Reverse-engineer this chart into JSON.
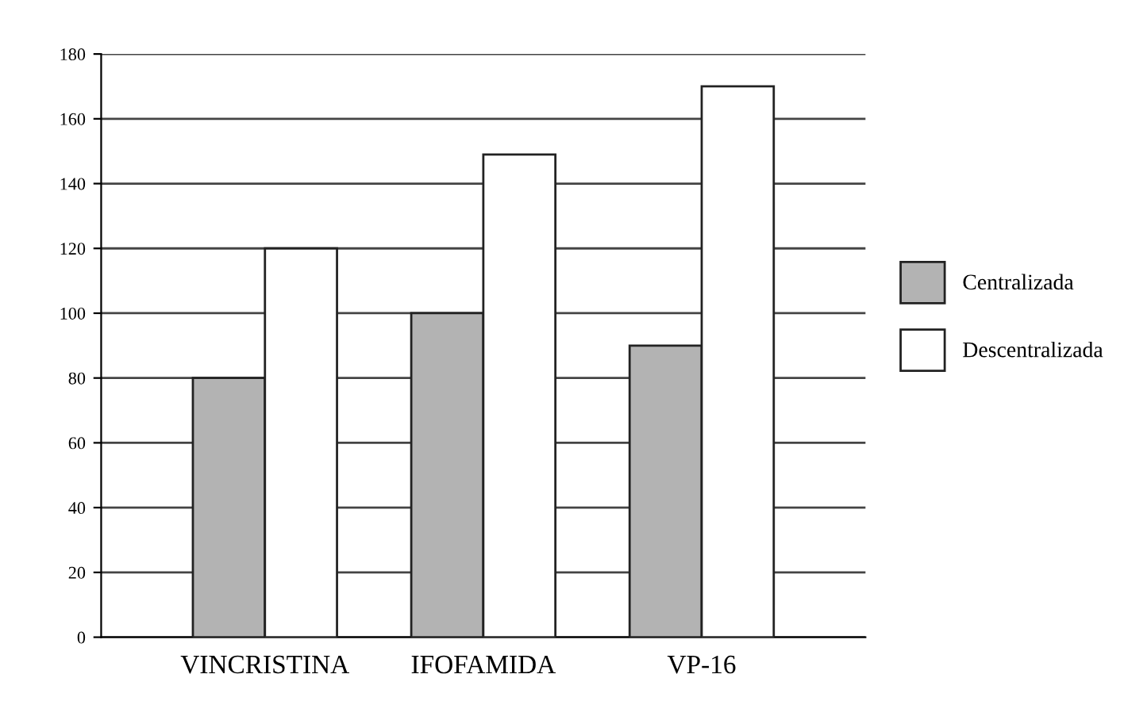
{
  "chart_data": {
    "type": "bar",
    "categories": [
      "VINCRISTINA",
      "IFOFAMIDA",
      "VP-16"
    ],
    "series": [
      {
        "name": "Centralizada",
        "color": "#b3b3b3",
        "values": [
          80,
          100,
          90
        ]
      },
      {
        "name": "Descentralizada",
        "color": "#ffffff",
        "values": [
          120,
          149,
          170
        ]
      }
    ],
    "ylim": [
      0,
      180
    ],
    "yticks": [
      0,
      20,
      40,
      60,
      80,
      100,
      120,
      140,
      160,
      180
    ],
    "grid": "y",
    "legend": "right"
  }
}
